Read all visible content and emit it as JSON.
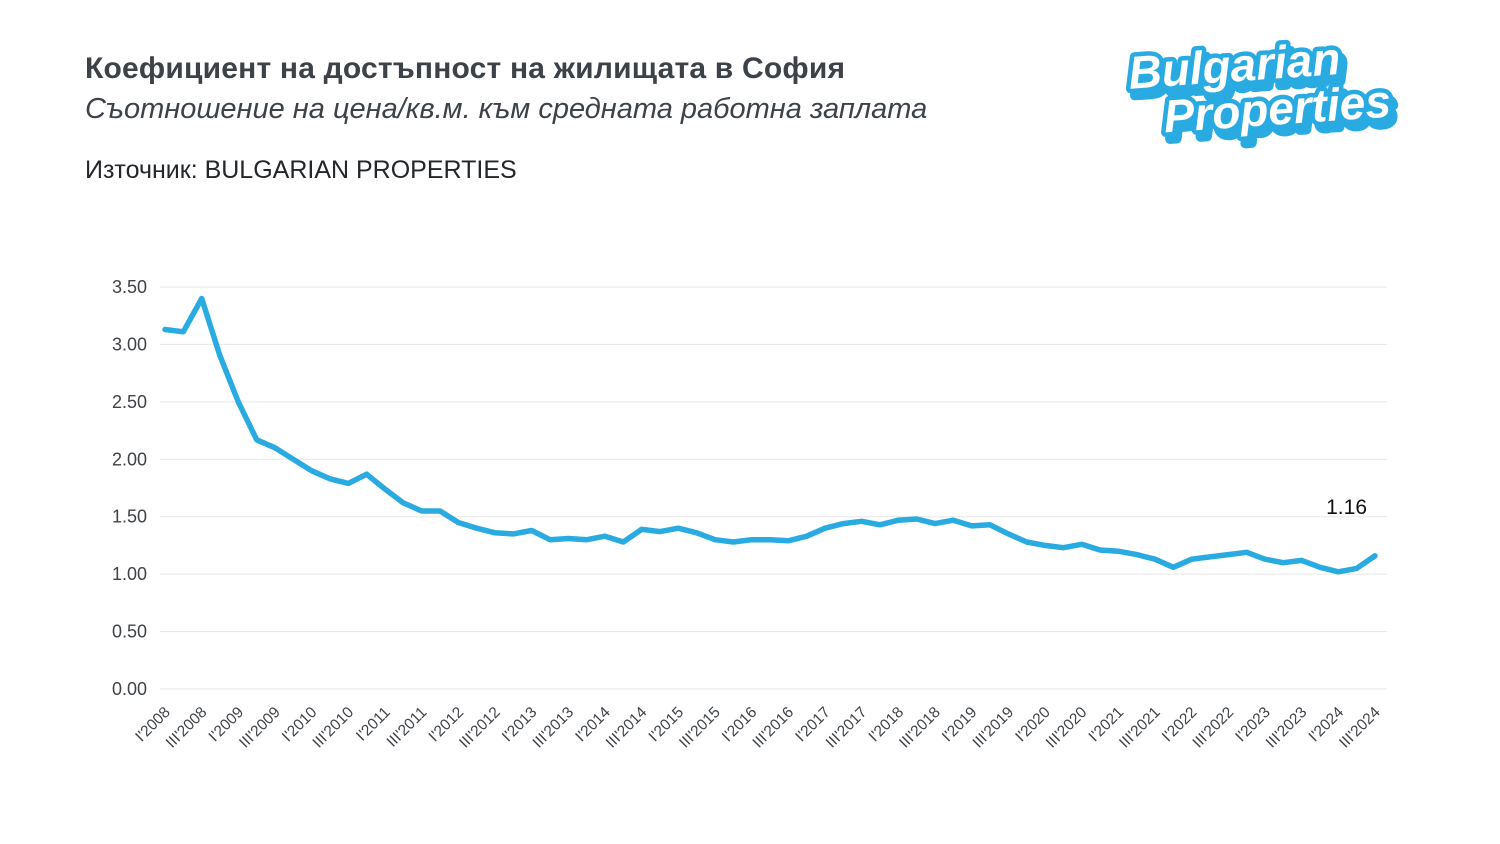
{
  "logo": {
    "line1": "Bulgarian",
    "line2": "Properties",
    "blue": "#29ABE2"
  },
  "chart_data": {
    "type": "line",
    "title": "Коефициент на достъпност на жилищата в София",
    "subtitle": "Съотношение на цена/кв.м. към средната работна заплата",
    "source": "Източник: BULGARIAN PROPERTIES",
    "legend": "none",
    "grid": "horizontal",
    "line_color": "#29ABE2",
    "grid_color": "#e7e7e7",
    "tick_color": "#3f4348",
    "annotation_color": "#111111",
    "ylim": [
      0,
      3.5
    ],
    "y_ticks": [
      "0.00",
      "0.50",
      "1.00",
      "1.50",
      "2.00",
      "2.50",
      "3.00",
      "3.50"
    ],
    "label_every": 2,
    "x_labels": [
      "I'2008",
      "III'2008",
      "I'2009",
      "III'2009",
      "I'2010",
      "III'2010",
      "I'2011",
      "III'2011",
      "I'2012",
      "III'2012",
      "I'2013",
      "III'2013",
      "I'2014",
      "III'2014",
      "I'2015",
      "III'2015",
      "I'2016",
      "III'2016",
      "I'2017",
      "III'2017",
      "I'2018",
      "III'2018",
      "I'2019",
      "III'2019",
      "I'2020",
      "III'2020",
      "I'2021",
      "III'2021",
      "I'2022",
      "III'2022",
      "I'2023",
      "III'2023",
      "I'2024",
      "III'2024"
    ],
    "x": [
      "I'2008",
      "II'2008",
      "III'2008",
      "IV'2008",
      "I'2009",
      "II'2009",
      "III'2009",
      "IV'2009",
      "I'2010",
      "II'2010",
      "III'2010",
      "IV'2010",
      "I'2011",
      "II'2011",
      "III'2011",
      "IV'2011",
      "I'2012",
      "II'2012",
      "III'2012",
      "IV'2012",
      "I'2013",
      "II'2013",
      "III'2013",
      "IV'2013",
      "I'2014",
      "II'2014",
      "III'2014",
      "IV'2014",
      "I'2015",
      "II'2015",
      "III'2015",
      "IV'2015",
      "I'2016",
      "II'2016",
      "III'2016",
      "IV'2016",
      "I'2017",
      "II'2017",
      "III'2017",
      "IV'2017",
      "I'2018",
      "II'2018",
      "III'2018",
      "IV'2018",
      "I'2019",
      "II'2019",
      "III'2019",
      "IV'2019",
      "I'2020",
      "II'2020",
      "III'2020",
      "IV'2020",
      "I'2021",
      "II'2021",
      "III'2021",
      "IV'2021",
      "I'2022",
      "II'2022",
      "III'2022",
      "IV'2022",
      "I'2023",
      "II'2023",
      "III'2023",
      "IV'2023",
      "I'2024",
      "II'2024",
      "III'2024"
    ],
    "values": [
      3.13,
      3.11,
      3.4,
      2.9,
      2.5,
      2.17,
      2.1,
      2.0,
      1.9,
      1.83,
      1.79,
      1.87,
      1.74,
      1.62,
      1.55,
      1.55,
      1.45,
      1.4,
      1.36,
      1.35,
      1.38,
      1.3,
      1.31,
      1.3,
      1.33,
      1.28,
      1.39,
      1.37,
      1.4,
      1.36,
      1.3,
      1.28,
      1.3,
      1.3,
      1.29,
      1.33,
      1.4,
      1.44,
      1.46,
      1.43,
      1.47,
      1.48,
      1.44,
      1.47,
      1.42,
      1.43,
      1.35,
      1.28,
      1.25,
      1.23,
      1.26,
      1.21,
      1.2,
      1.17,
      1.13,
      1.06,
      1.13,
      1.15,
      1.17,
      1.19,
      1.13,
      1.1,
      1.12,
      1.06,
      1.02,
      1.05,
      1.16
    ],
    "last_value_label": "1.16"
  }
}
